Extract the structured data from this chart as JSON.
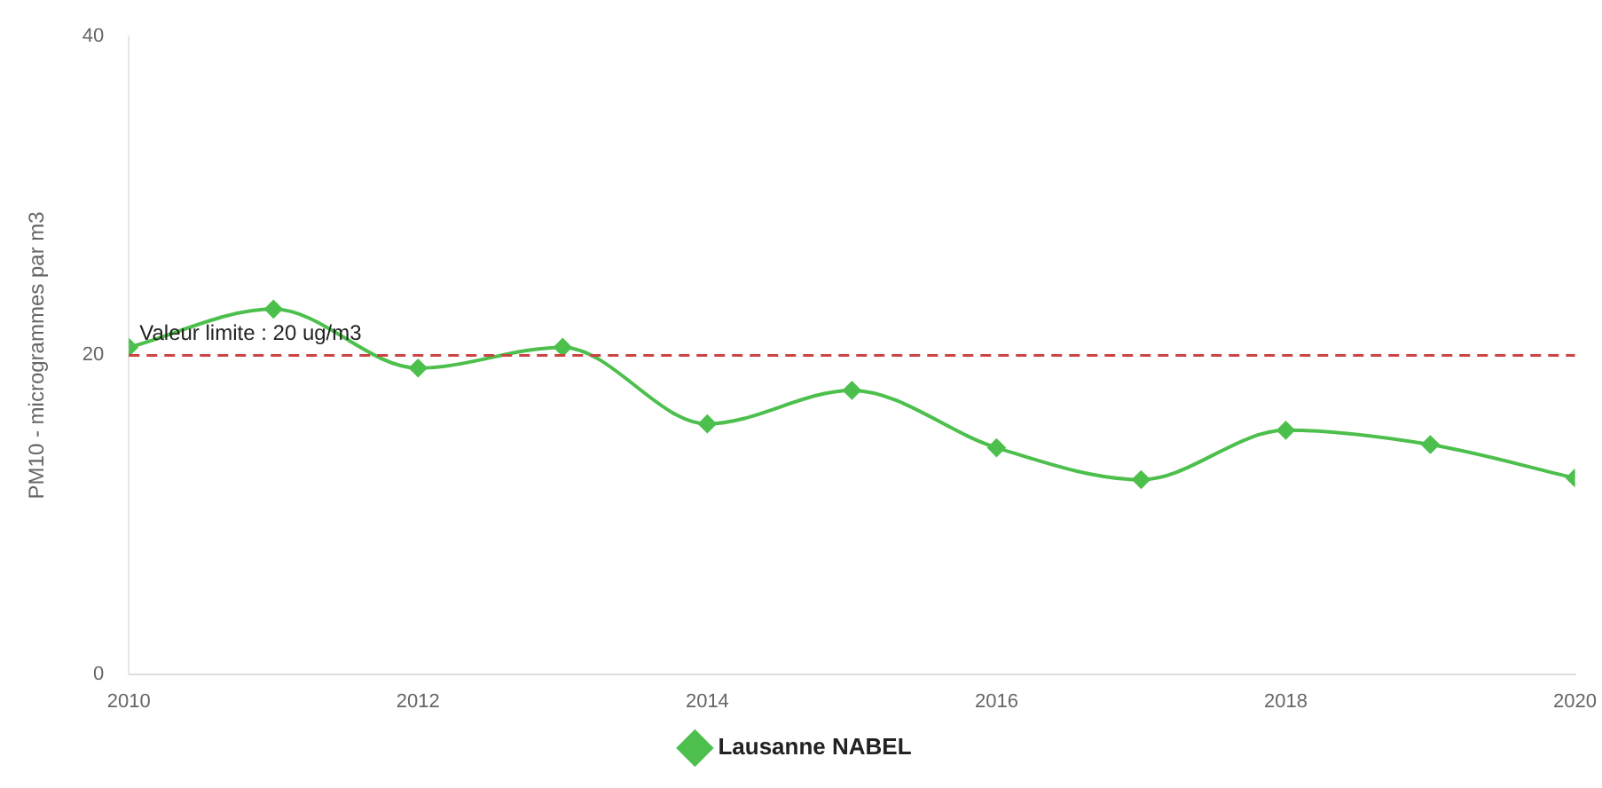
{
  "chart_data": {
    "type": "line",
    "ylabel": "PM10 - microgrammes par m3",
    "x": [
      2010,
      2011,
      2012,
      2013,
      2014,
      2015,
      2016,
      2017,
      2018,
      2019,
      2020
    ],
    "series": [
      {
        "name": "Lausanne NABEL",
        "color": "#4cbf4c",
        "values": [
          20.5,
          22.9,
          19.2,
          20.5,
          15.7,
          17.8,
          14.2,
          12.2,
          15.3,
          14.4,
          12.3
        ]
      }
    ],
    "xlim": [
      2010,
      2020
    ],
    "xticks": [
      2010,
      2012,
      2014,
      2016,
      2018,
      2020
    ],
    "ylim": [
      0,
      40
    ],
    "yticks": [
      0,
      20,
      40
    ],
    "ref_lines": [
      {
        "axis": "y",
        "value": 20,
        "label": "Valeur limite : 20 ug/m3",
        "color": "#cc4444",
        "line_style": "dashed"
      }
    ],
    "legend": "bottom",
    "marker": "diamond",
    "line_style": "solid"
  }
}
